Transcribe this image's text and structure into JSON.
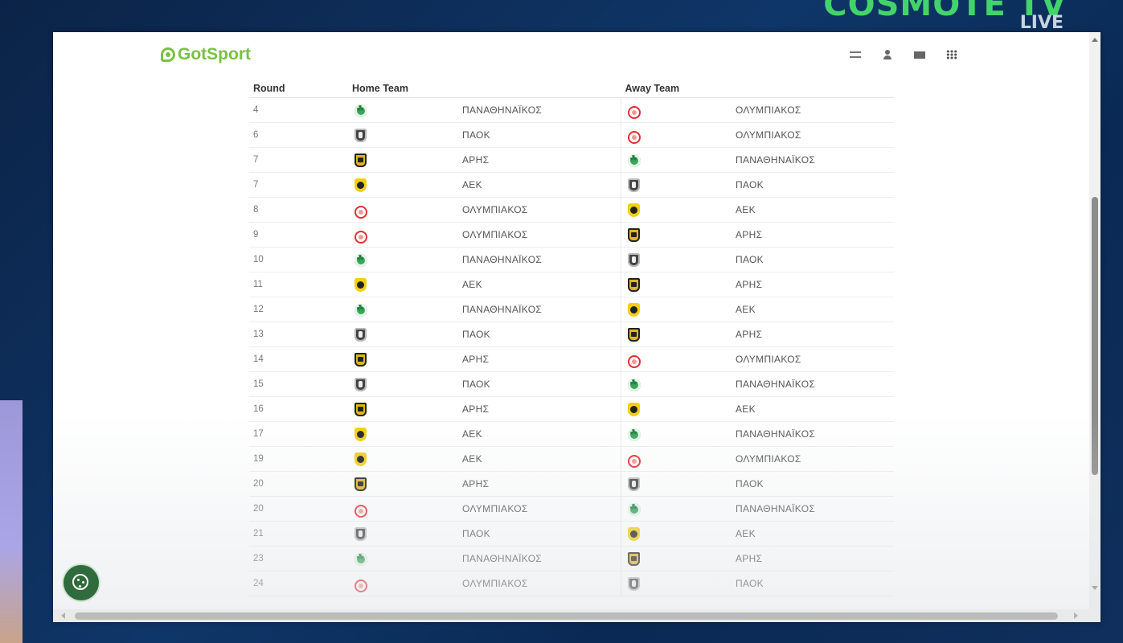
{
  "overlay": {
    "channel_logo": "COSMOTE TV",
    "channel_live": "LIVE"
  },
  "header": {
    "brand": "GotSport",
    "icons": [
      "sliders-icon",
      "user-icon",
      "mail-icon",
      "apps-grid-icon"
    ]
  },
  "table": {
    "columns": [
      "Round",
      "Home Team",
      "Away Team"
    ],
    "rows": [
      {
        "round": "4",
        "home": "ΠΑΝΑΘΗΝΑΪΚΟΣ",
        "home_crest": "pao",
        "away": "ΟΛΥΜΠΙΑΚΟΣ",
        "away_crest": "oly"
      },
      {
        "round": "6",
        "home": "ΠΑΟΚ",
        "home_crest": "paok",
        "away": "ΟΛΥΜΠΙΑΚΟΣ",
        "away_crest": "oly"
      },
      {
        "round": "7",
        "home": "ΑΡΗΣ",
        "home_crest": "aris",
        "away": "ΠΑΝΑΘΗΝΑΪΚΟΣ",
        "away_crest": "pao"
      },
      {
        "round": "7",
        "home": "ΑΕΚ",
        "home_crest": "aek",
        "away": "ΠΑΟΚ",
        "away_crest": "paok"
      },
      {
        "round": "8",
        "home": "ΟΛΥΜΠΙΑΚΟΣ",
        "home_crest": "oly",
        "away": "ΑΕΚ",
        "away_crest": "aek"
      },
      {
        "round": "9",
        "home": "ΟΛΥΜΠΙΑΚΟΣ",
        "home_crest": "oly",
        "away": "ΑΡΗΣ",
        "away_crest": "aris"
      },
      {
        "round": "10",
        "home": "ΠΑΝΑΘΗΝΑΪΚΟΣ",
        "home_crest": "pao",
        "away": "ΠΑΟΚ",
        "away_crest": "paok"
      },
      {
        "round": "11",
        "home": "ΑΕΚ",
        "home_crest": "aek",
        "away": "ΑΡΗΣ",
        "away_crest": "aris"
      },
      {
        "round": "12",
        "home": "ΠΑΝΑΘΗΝΑΪΚΟΣ",
        "home_crest": "pao",
        "away": "ΑΕΚ",
        "away_crest": "aek"
      },
      {
        "round": "13",
        "home": "ΠΑΟΚ",
        "home_crest": "paok",
        "away": "ΑΡΗΣ",
        "away_crest": "aris"
      },
      {
        "round": "14",
        "home": "ΑΡΗΣ",
        "home_crest": "aris",
        "away": "ΟΛΥΜΠΙΑΚΟΣ",
        "away_crest": "oly"
      },
      {
        "round": "15",
        "home": "ΠΑΟΚ",
        "home_crest": "paok",
        "away": "ΠΑΝΑΘΗΝΑΪΚΟΣ",
        "away_crest": "pao"
      },
      {
        "round": "16",
        "home": "ΑΡΗΣ",
        "home_crest": "aris",
        "away": "ΑΕΚ",
        "away_crest": "aek"
      },
      {
        "round": "17",
        "home": "ΑΕΚ",
        "home_crest": "aek",
        "away": "ΠΑΝΑΘΗΝΑΪΚΟΣ",
        "away_crest": "pao"
      },
      {
        "round": "19",
        "home": "ΑΕΚ",
        "home_crest": "aek",
        "away": "ΟΛΥΜΠΙΑΚΟΣ",
        "away_crest": "oly"
      },
      {
        "round": "20",
        "home": "ΑΡΗΣ",
        "home_crest": "aris",
        "away": "ΠΑΟΚ",
        "away_crest": "paok"
      },
      {
        "round": "20",
        "home": "ΟΛΥΜΠΙΑΚΟΣ",
        "home_crest": "oly",
        "away": "ΠΑΝΑΘΗΝΑΪΚΟΣ",
        "away_crest": "pao"
      },
      {
        "round": "21",
        "home": "ΠΑΟΚ",
        "home_crest": "paok",
        "away": "ΑΕΚ",
        "away_crest": "aek"
      },
      {
        "round": "23",
        "home": "ΠΑΝΑΘΗΝΑΪΚΟΣ",
        "home_crest": "pao",
        "away": "ΑΡΗΣ",
        "away_crest": "aris"
      },
      {
        "round": "24",
        "home": "ΟΛΥΜΠΙΑΚΟΣ",
        "home_crest": "oly",
        "away": "ΠΑΟΚ",
        "away_crest": "paok"
      }
    ]
  },
  "cookie_button": {
    "icon": "cookie-icon"
  }
}
